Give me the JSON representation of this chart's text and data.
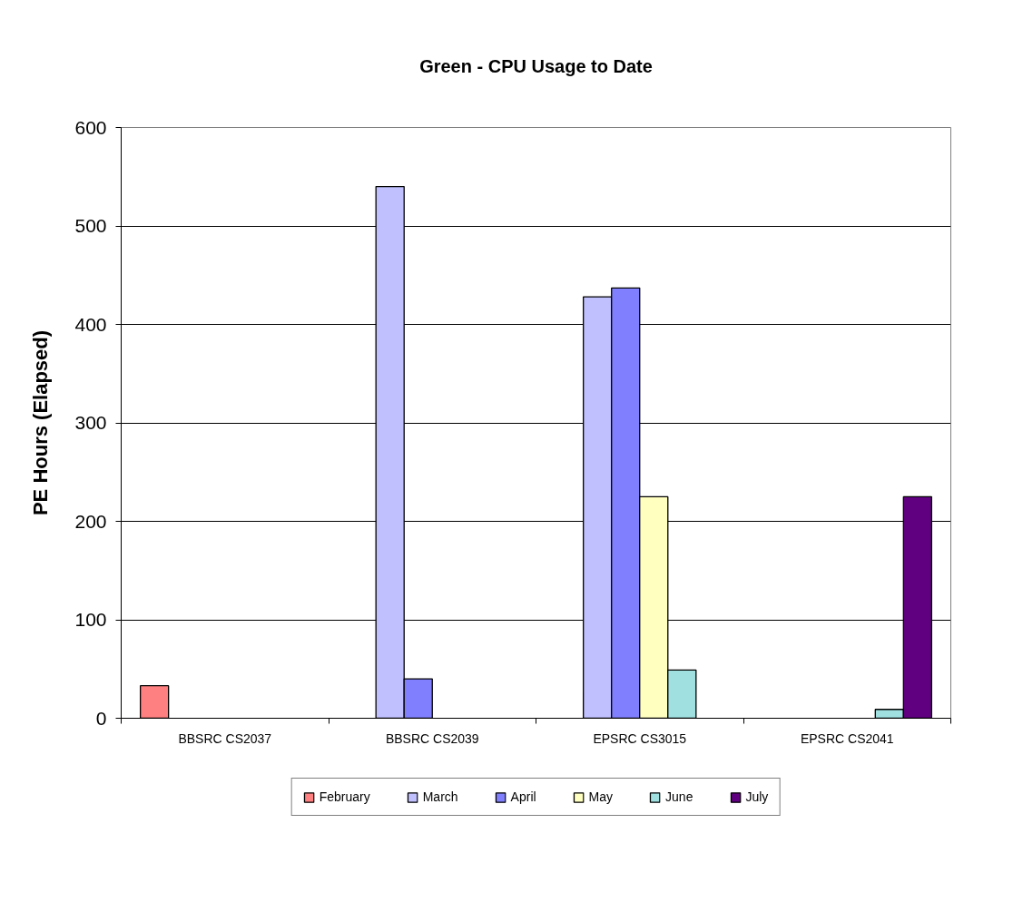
{
  "chart_data": {
    "type": "bar",
    "title": "Green - CPU Usage to Date",
    "ylabel": "PE Hours (Elapsed)",
    "categories": [
      "BBSRC CS2037",
      "BBSRC CS2039",
      "EPSRC CS3015",
      "EPSRC CS2041"
    ],
    "series": [
      {
        "name": "February",
        "color": "#ff8080",
        "values": [
          33,
          null,
          null,
          null
        ]
      },
      {
        "name": "March",
        "color": "#c0c0ff",
        "values": [
          null,
          540,
          428,
          null
        ]
      },
      {
        "name": "April",
        "color": "#8080ff",
        "values": [
          null,
          40,
          437,
          null
        ]
      },
      {
        "name": "May",
        "color": "#ffffc0",
        "values": [
          null,
          null,
          225,
          null
        ]
      },
      {
        "name": "June",
        "color": "#a0e0e0",
        "values": [
          null,
          null,
          49,
          9
        ]
      },
      {
        "name": "July",
        "color": "#600080",
        "values": [
          null,
          null,
          null,
          225
        ]
      }
    ],
    "ylim": [
      0,
      600
    ],
    "yticks": [
      0,
      100,
      200,
      300,
      400,
      500,
      600
    ],
    "grid": "y",
    "legend": "bottom"
  }
}
